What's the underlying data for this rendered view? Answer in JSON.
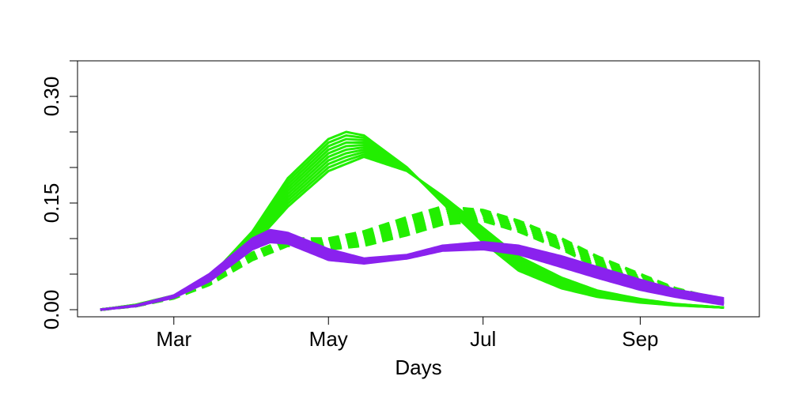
{
  "chart_data": {
    "type": "line",
    "title": "",
    "xlabel": "Days",
    "ylabel": "",
    "x_unit": "date",
    "xlim": [
      "2020-01-23",
      "2020-10-18"
    ],
    "ylim": [
      -0.01,
      0.35
    ],
    "xticks": [
      {
        "label": "Mar",
        "value": "2020-03-01"
      },
      {
        "label": "May",
        "value": "2020-05-01"
      },
      {
        "label": "Jul",
        "value": "2020-07-01"
      },
      {
        "label": "Sep",
        "value": "2020-09-01"
      }
    ],
    "yticks": [
      0.0,
      0.05,
      0.1,
      0.15,
      0.2,
      0.25,
      0.3
    ],
    "ytick_labels": [
      {
        "label": "0.00",
        "value": 0.0
      },
      {
        "label": "0.15",
        "value": 0.15
      },
      {
        "label": "0.30",
        "value": 0.3
      }
    ],
    "grid": false,
    "legend": "none",
    "colors": {
      "green": "#22ee00",
      "purple": "#8a22ee"
    },
    "bands": [
      {
        "color": "#22ee00",
        "style": "solid",
        "upper": [
          [
            "2020-02-01",
            0.0
          ],
          [
            "2020-02-15",
            0.007
          ],
          [
            "2020-03-01",
            0.02
          ],
          [
            "2020-03-15",
            0.045
          ],
          [
            "2020-04-01",
            0.11
          ],
          [
            "2020-04-15",
            0.185
          ],
          [
            "2020-05-01",
            0.24
          ],
          [
            "2020-05-08",
            0.25
          ],
          [
            "2020-05-15",
            0.245
          ],
          [
            "2020-06-01",
            0.2
          ],
          [
            "2020-06-15",
            0.15
          ],
          [
            "2020-07-01",
            0.095
          ],
          [
            "2020-07-15",
            0.055
          ],
          [
            "2020-08-01",
            0.03
          ],
          [
            "2020-08-15",
            0.018
          ],
          [
            "2020-09-01",
            0.01
          ],
          [
            "2020-09-15",
            0.006
          ],
          [
            "2020-10-04",
            0.003
          ]
        ],
        "lower": [
          [
            "2020-02-01",
            0.0
          ],
          [
            "2020-02-15",
            0.006
          ],
          [
            "2020-03-01",
            0.018
          ],
          [
            "2020-03-15",
            0.04
          ],
          [
            "2020-04-01",
            0.09
          ],
          [
            "2020-04-15",
            0.145
          ],
          [
            "2020-05-01",
            0.195
          ],
          [
            "2020-05-15",
            0.215
          ],
          [
            "2020-06-01",
            0.195
          ],
          [
            "2020-06-15",
            0.16
          ],
          [
            "2020-07-01",
            0.115
          ],
          [
            "2020-07-15",
            0.075
          ],
          [
            "2020-08-01",
            0.045
          ],
          [
            "2020-08-15",
            0.027
          ],
          [
            "2020-09-01",
            0.015
          ],
          [
            "2020-09-15",
            0.008
          ],
          [
            "2020-10-04",
            0.003
          ]
        ]
      },
      {
        "color": "#22ee00",
        "style": "dashed",
        "upper": [
          [
            "2020-02-01",
            0.0
          ],
          [
            "2020-02-15",
            0.006
          ],
          [
            "2020-03-01",
            0.018
          ],
          [
            "2020-03-15",
            0.04
          ],
          [
            "2020-04-01",
            0.08
          ],
          [
            "2020-04-15",
            0.1
          ],
          [
            "2020-05-01",
            0.1
          ],
          [
            "2020-05-15",
            0.11
          ],
          [
            "2020-06-01",
            0.13
          ],
          [
            "2020-06-15",
            0.145
          ],
          [
            "2020-07-01",
            0.14
          ],
          [
            "2020-07-15",
            0.125
          ],
          [
            "2020-08-01",
            0.1
          ],
          [
            "2020-08-15",
            0.075
          ],
          [
            "2020-09-01",
            0.05
          ],
          [
            "2020-09-15",
            0.03
          ],
          [
            "2020-10-04",
            0.013
          ]
        ],
        "lower": [
          [
            "2020-02-01",
            0.0
          ],
          [
            "2020-02-15",
            0.005
          ],
          [
            "2020-03-01",
            0.016
          ],
          [
            "2020-03-15",
            0.035
          ],
          [
            "2020-04-01",
            0.07
          ],
          [
            "2020-04-15",
            0.09
          ],
          [
            "2020-05-01",
            0.085
          ],
          [
            "2020-05-15",
            0.09
          ],
          [
            "2020-06-01",
            0.105
          ],
          [
            "2020-06-15",
            0.12
          ],
          [
            "2020-07-01",
            0.125
          ],
          [
            "2020-07-15",
            0.11
          ],
          [
            "2020-08-01",
            0.085
          ],
          [
            "2020-08-15",
            0.06
          ],
          [
            "2020-09-01",
            0.038
          ],
          [
            "2020-09-15",
            0.022
          ],
          [
            "2020-10-04",
            0.009
          ]
        ]
      },
      {
        "color": "#8a22ee",
        "style": "solid",
        "upper": [
          [
            "2020-02-01",
            0.0
          ],
          [
            "2020-02-15",
            0.006
          ],
          [
            "2020-03-01",
            0.02
          ],
          [
            "2020-03-15",
            0.05
          ],
          [
            "2020-04-01",
            0.1
          ],
          [
            "2020-04-08",
            0.112
          ],
          [
            "2020-04-15",
            0.108
          ],
          [
            "2020-05-01",
            0.085
          ],
          [
            "2020-05-15",
            0.072
          ],
          [
            "2020-06-01",
            0.077
          ],
          [
            "2020-06-15",
            0.09
          ],
          [
            "2020-07-01",
            0.095
          ],
          [
            "2020-07-15",
            0.09
          ],
          [
            "2020-08-01",
            0.075
          ],
          [
            "2020-08-15",
            0.06
          ],
          [
            "2020-09-01",
            0.042
          ],
          [
            "2020-09-15",
            0.028
          ],
          [
            "2020-10-04",
            0.016
          ]
        ],
        "lower": [
          [
            "2020-02-01",
            0.0
          ],
          [
            "2020-02-15",
            0.005
          ],
          [
            "2020-03-01",
            0.017
          ],
          [
            "2020-03-15",
            0.04
          ],
          [
            "2020-04-01",
            0.085
          ],
          [
            "2020-04-08",
            0.095
          ],
          [
            "2020-04-15",
            0.093
          ],
          [
            "2020-05-01",
            0.07
          ],
          [
            "2020-05-15",
            0.065
          ],
          [
            "2020-06-01",
            0.072
          ],
          [
            "2020-06-15",
            0.083
          ],
          [
            "2020-07-01",
            0.085
          ],
          [
            "2020-07-15",
            0.078
          ],
          [
            "2020-08-01",
            0.06
          ],
          [
            "2020-08-15",
            0.045
          ],
          [
            "2020-09-01",
            0.028
          ],
          [
            "2020-09-15",
            0.018
          ],
          [
            "2020-10-04",
            0.007
          ]
        ]
      }
    ]
  }
}
